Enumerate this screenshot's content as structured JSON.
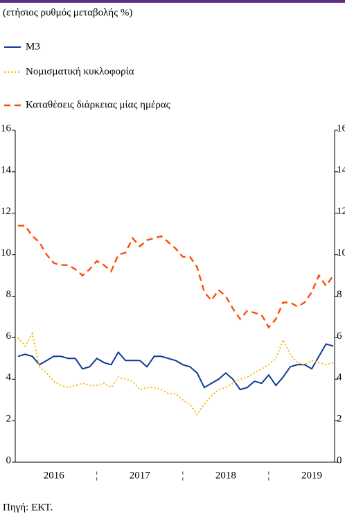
{
  "chart_data": {
    "type": "line",
    "subtitle": "(ετήσιος ρυθμός μεταβολής %)",
    "source": "Πηγή: ΕΚΤ.",
    "categories": [
      null,
      null,
      null,
      null,
      null,
      "2016",
      null,
      null,
      null,
      null,
      null,
      "¦",
      null,
      null,
      null,
      null,
      null,
      "2017",
      null,
      null,
      null,
      null,
      null,
      "¦",
      null,
      null,
      null,
      null,
      null,
      "2018",
      null,
      null,
      null,
      null,
      null,
      "¦",
      null,
      null,
      null,
      null,
      null,
      "2019",
      null,
      null,
      null
    ],
    "series": [
      {
        "name": "M3",
        "color": "#0d3a96",
        "style": "solid",
        "values": [
          5.1,
          5.2,
          5.1,
          4.7,
          4.9,
          5.1,
          5.1,
          5.0,
          5.0,
          4.5,
          4.6,
          5.0,
          4.8,
          4.7,
          5.3,
          4.9,
          4.9,
          4.9,
          4.6,
          5.1,
          5.1,
          5.0,
          4.9,
          4.7,
          4.6,
          4.3,
          3.6,
          3.8,
          4.0,
          4.3,
          4.0,
          3.5,
          3.6,
          3.9,
          3.8,
          4.2,
          3.7,
          4.1,
          4.6,
          4.7,
          4.7,
          4.5,
          5.1,
          5.7,
          5.6
        ]
      },
      {
        "name": "Νομισματική κυκλοφορία",
        "color": "#f5b800",
        "style": "dotted",
        "values": [
          6.0,
          5.6,
          6.2,
          4.6,
          4.3,
          3.9,
          3.7,
          3.6,
          3.7,
          3.8,
          3.7,
          3.7,
          3.8,
          3.6,
          4.1,
          4.0,
          3.9,
          3.5,
          3.6,
          3.6,
          3.5,
          3.3,
          3.3,
          3.0,
          2.8,
          2.3,
          2.8,
          3.2,
          3.5,
          3.6,
          3.8,
          4.0,
          4.1,
          4.3,
          4.5,
          4.7,
          5.0,
          5.9,
          5.2,
          4.8,
          4.7,
          4.9,
          4.8,
          4.7,
          4.8
        ]
      },
      {
        "name": "Καταθέσεις διάρκειας μίας ημέρας",
        "color": "#ff4b00",
        "style": "dashed",
        "values": [
          11.4,
          11.4,
          10.9,
          10.6,
          10.0,
          9.6,
          9.5,
          9.5,
          9.3,
          9.0,
          9.3,
          9.7,
          9.5,
          9.2,
          10.0,
          10.1,
          10.8,
          10.4,
          10.7,
          10.8,
          10.9,
          10.6,
          10.3,
          9.9,
          9.9,
          9.4,
          8.2,
          7.8,
          8.3,
          8.0,
          7.4,
          6.9,
          7.3,
          7.2,
          7.1,
          6.5,
          6.9,
          7.7,
          7.7,
          7.5,
          7.7,
          8.2,
          9.0,
          8.5,
          9.0
        ]
      }
    ],
    "ylim": [
      0,
      16
    ],
    "yticks": [
      0,
      2,
      4,
      6,
      8,
      10,
      12,
      14,
      16
    ]
  }
}
